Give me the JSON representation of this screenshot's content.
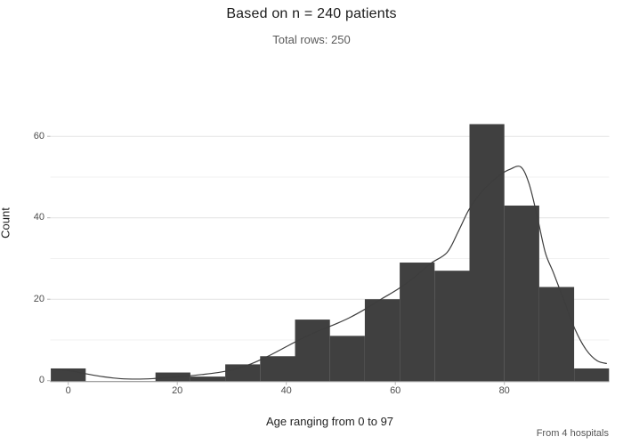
{
  "chart_data": {
    "type": "bar",
    "subtype": "histogram-with-density",
    "title": "Based on n = 240 patients",
    "subtitle": "Total rows: 250",
    "caption": "From 4 hospitals",
    "xlabel": "Age ranging from 0 to 97",
    "ylabel": "Count",
    "bin_start": -3.2,
    "bin_width": 6.4,
    "counts": [
      3,
      0,
      0,
      2,
      1,
      4,
      6,
      15,
      11,
      20,
      29,
      27,
      63,
      43,
      23,
      3
    ],
    "x_ticks": [
      0,
      20,
      40,
      60,
      80
    ],
    "y_ticks": [
      0,
      20,
      40,
      60
    ],
    "y_minor_gridlines": [
      10,
      30,
      50
    ],
    "xlim": [
      -3.2,
      99.2
    ],
    "ylim": [
      0,
      70
    ],
    "grid": "horizontal-only",
    "legend": "none",
    "density_curve": {
      "x": [
        -3.2,
        0,
        3.2,
        6.5,
        9.5,
        12.5,
        15.5,
        18.5,
        21.5,
        24.5,
        27.5,
        30.5,
        33.5,
        36.5,
        39.5,
        42.5,
        45.5,
        48.5,
        51.5,
        54.5,
        57.5,
        60.5,
        63.5,
        66.5,
        69.5,
        71.5,
        73.5,
        75.5,
        77.5,
        79.5,
        81,
        83,
        84.5,
        86,
        87.5,
        89,
        91,
        93,
        95,
        97,
        98.8
      ],
      "y": [
        2.8,
        2.5,
        1.7,
        0.95,
        0.5,
        0.38,
        0.5,
        0.8,
        1.1,
        1.5,
        2.0,
        2.8,
        4.1,
        5.9,
        8.0,
        10.1,
        12.0,
        13.6,
        15.4,
        17.6,
        20.1,
        22.5,
        25.4,
        28.8,
        31.5,
        36.5,
        42.0,
        45.8,
        48.6,
        50.8,
        51.9,
        52.5,
        48.5,
        40.5,
        31.5,
        26.5,
        19.5,
        12.5,
        7.6,
        4.9,
        4.2
      ]
    },
    "colors": {
      "background": "#ffffff",
      "bar": "#404040",
      "curve": "#3d3d3d",
      "grid_major": "#e3e3e3",
      "grid_minor": "#f1f1f1",
      "axis_line": "#808080",
      "tick_mark": "#b5b5b5",
      "tick_label": "#4d4d4d",
      "title": "#1a1a1a",
      "subtitle": "#5a5a5a",
      "caption": "#555555",
      "axis_title": "#1f1f1f"
    }
  }
}
